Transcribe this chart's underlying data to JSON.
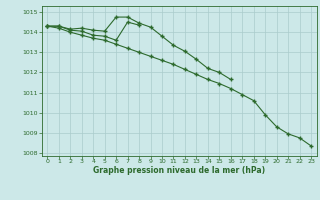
{
  "background_color": "#cce8e8",
  "grid_color": "#aacccc",
  "line_color": "#2d6a2d",
  "x_values": [
    0,
    1,
    2,
    3,
    4,
    5,
    6,
    7,
    8,
    9,
    10,
    11,
    12,
    13,
    14,
    15,
    16,
    17,
    18,
    19,
    20,
    21,
    22,
    23
  ],
  "series1": [
    1014.3,
    1014.3,
    1014.15,
    1014.2,
    1014.1,
    1014.05,
    1014.75,
    1014.75,
    1014.45,
    1014.25,
    1013.8,
    1013.35,
    1013.05,
    1012.65,
    1012.2,
    1012.0,
    1011.65,
    null,
    null,
    null,
    null,
    null,
    null,
    null
  ],
  "series2": [
    1014.3,
    1014.3,
    1014.1,
    1014.05,
    1013.85,
    1013.8,
    1013.6,
    1014.5,
    1014.35,
    null,
    null,
    null,
    null,
    null,
    null,
    null,
    null,
    null,
    null,
    null,
    null,
    null,
    null,
    null
  ],
  "series3": [
    1014.3,
    1014.2,
    1014.0,
    1013.85,
    1013.7,
    1013.6,
    1013.4,
    1013.2,
    1013.0,
    1012.8,
    1012.6,
    1012.4,
    1012.15,
    1011.9,
    1011.65,
    1011.45,
    1011.2,
    1010.9,
    1010.6,
    1009.9,
    1009.3,
    1008.95,
    1008.75,
    1008.35
  ],
  "ylim": [
    1008,
    1015
  ],
  "xlim": [
    -0.5,
    23.5
  ],
  "xlabel": "Graphe pression niveau de la mer (hPa)",
  "yticks": [
    1008,
    1009,
    1010,
    1011,
    1012,
    1013,
    1014,
    1015
  ],
  "xticks": [
    0,
    1,
    2,
    3,
    4,
    5,
    6,
    7,
    8,
    9,
    10,
    11,
    12,
    13,
    14,
    15,
    16,
    17,
    18,
    19,
    20,
    21,
    22,
    23
  ]
}
